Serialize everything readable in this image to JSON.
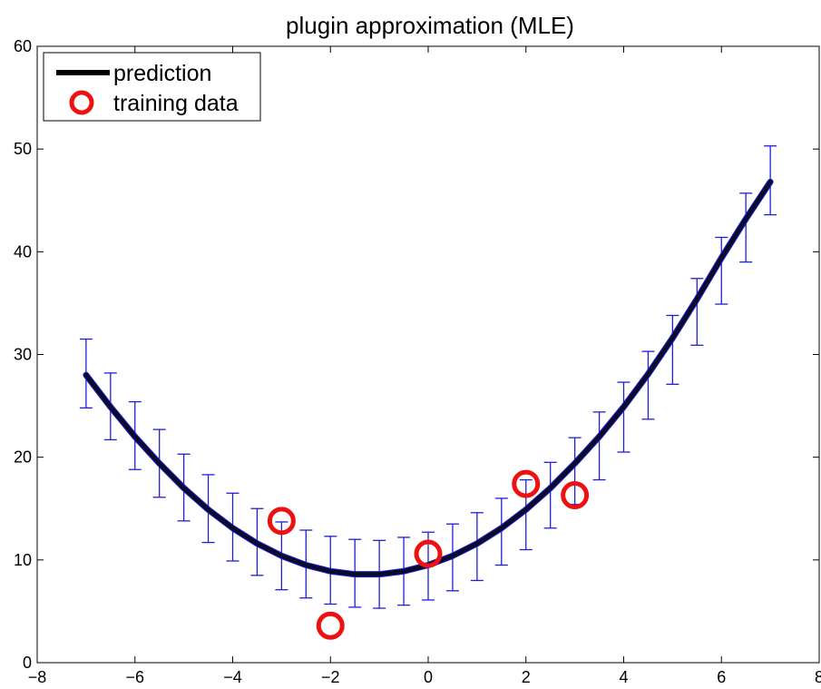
{
  "chart_data": {
    "type": "line",
    "title": "plugin approximation (MLE)",
    "xlabel": "",
    "ylabel": "",
    "xlim": [
      -8,
      8
    ],
    "ylim": [
      0,
      60
    ],
    "x_ticks": [
      -8,
      -6,
      -4,
      -2,
      0,
      2,
      4,
      6,
      8
    ],
    "x_tick_labels": [
      "−8",
      "−6",
      "−4",
      "−2",
      "0",
      "2",
      "4",
      "6",
      "8"
    ],
    "y_ticks": [
      0,
      10,
      20,
      30,
      40,
      50,
      60
    ],
    "y_tick_labels": [
      "0",
      "10",
      "20",
      "30",
      "40",
      "50",
      "60"
    ],
    "grid": false,
    "legend_position": "top-left",
    "series": [
      {
        "name": "prediction",
        "kind": "line",
        "color": "#0a0a2a",
        "x": [
          -7,
          -6.5,
          -6,
          -5.5,
          -5,
          -4.5,
          -4,
          -3.5,
          -3,
          -2.5,
          -2,
          -1.5,
          -1,
          -0.5,
          0,
          0.5,
          1,
          1.5,
          2,
          2.5,
          3,
          3.5,
          4,
          4.5,
          5,
          5.5,
          6,
          6.5,
          7
        ],
        "y": [
          28.0,
          24.9,
          22.0,
          19.4,
          17.0,
          14.9,
          13.1,
          11.6,
          10.4,
          9.5,
          8.9,
          8.6,
          8.6,
          8.9,
          9.5,
          10.4,
          11.6,
          13.1,
          14.9,
          17.0,
          19.4,
          22.0,
          24.9,
          28.1,
          31.6,
          35.4,
          39.4,
          43.2,
          46.8
        ]
      },
      {
        "name": "error bars",
        "kind": "errorbar",
        "color": "#1f1fd6",
        "x": [
          -7,
          -6.5,
          -6,
          -5.5,
          -5,
          -4.5,
          -4,
          -3.5,
          -3,
          -2.5,
          -2,
          -1.5,
          -1,
          -0.5,
          0,
          0.5,
          1,
          1.5,
          2,
          2.5,
          3,
          3.5,
          4,
          4.5,
          5,
          5.5,
          6,
          6.5,
          7
        ],
        "lower": [
          24.8,
          21.7,
          18.8,
          16.1,
          13.8,
          11.7,
          9.9,
          8.5,
          7.1,
          6.3,
          5.7,
          5.4,
          5.3,
          5.6,
          6.1,
          7.0,
          8.0,
          9.5,
          11.0,
          13.1,
          15.4,
          17.8,
          20.5,
          23.7,
          27.1,
          30.9,
          34.9,
          39.0,
          43.6
        ],
        "upper": [
          31.5,
          28.2,
          25.4,
          22.7,
          20.3,
          18.3,
          16.5,
          15.0,
          13.7,
          12.9,
          12.3,
          12.0,
          11.9,
          12.2,
          12.7,
          13.5,
          14.6,
          16.0,
          17.8,
          19.5,
          21.9,
          24.4,
          27.3,
          30.3,
          33.8,
          37.4,
          41.4,
          45.7,
          50.3
        ]
      },
      {
        "name": "training data",
        "kind": "scatter",
        "marker": "circle-open",
        "color": "#ee1111",
        "x": [
          -3,
          -2,
          0,
          2,
          3
        ],
        "y": [
          13.8,
          3.6,
          10.6,
          17.4,
          16.3
        ]
      }
    ]
  }
}
